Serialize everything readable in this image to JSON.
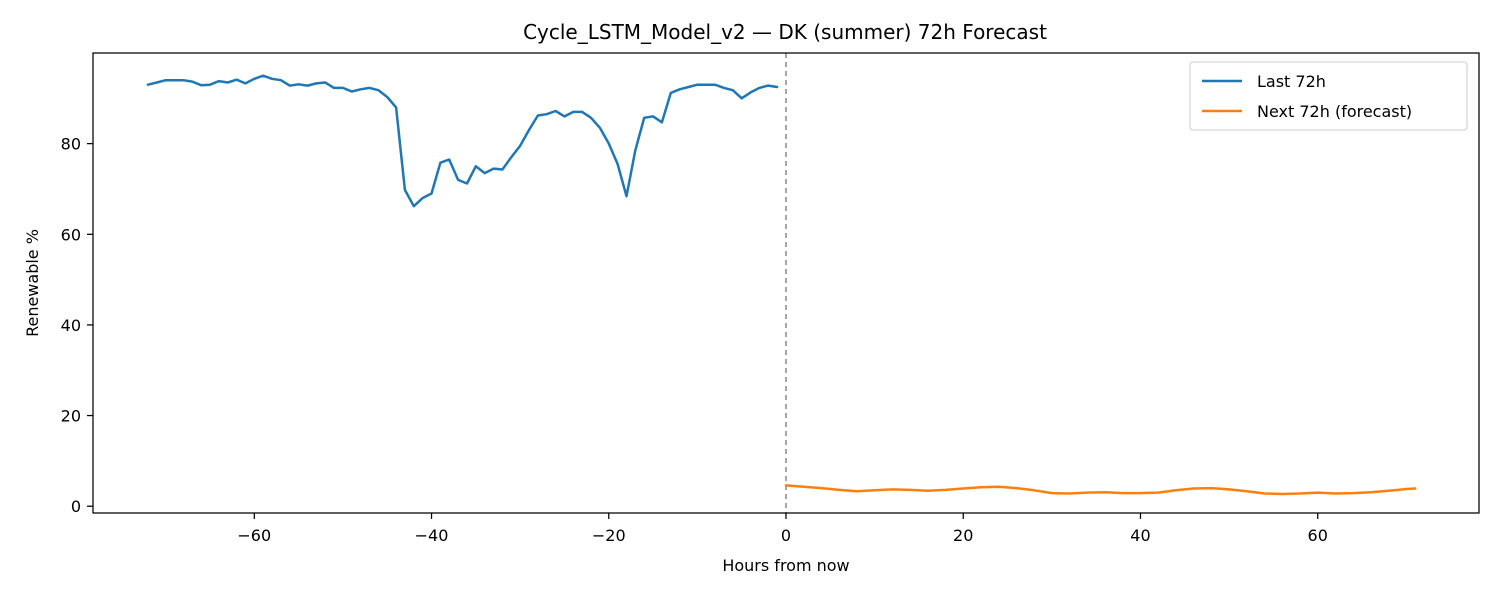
{
  "chart_data": {
    "type": "line",
    "title": "Cycle_LSTM_Model_v2 — DK (summer) 72h Forecast",
    "xlabel": "Hours from now",
    "ylabel": "Renewable %",
    "xlim": [
      -78.2,
      78.2
    ],
    "ylim": [
      -1.5,
      100
    ],
    "xticks": [
      -60,
      -40,
      -20,
      0,
      20,
      40,
      60
    ],
    "yticks": [
      0,
      20,
      40,
      60,
      80
    ],
    "xtick_labels": [
      "−60",
      "−40",
      "−20",
      "0",
      "20",
      "40",
      "60"
    ],
    "ytick_labels": [
      "0",
      "20",
      "40",
      "60",
      "80"
    ],
    "grid": false,
    "legend_position": "top-right",
    "vline": {
      "x": 0,
      "style": "dashed",
      "color": "#888888"
    },
    "series": [
      {
        "name": "Last 72h",
        "color": "#1f77b4",
        "x": [
          -72,
          -71,
          -70,
          -69,
          -68,
          -67,
          -66,
          -65,
          -64,
          -63,
          -62,
          -61,
          -60,
          -59,
          -58,
          -57,
          -56,
          -55,
          -54,
          -53,
          -52,
          -51,
          -50,
          -49,
          -48,
          -47,
          -46,
          -45,
          -44,
          -43,
          -42,
          -41,
          -40,
          -39,
          -38,
          -37,
          -36,
          -35,
          -34,
          -33,
          -32,
          -31,
          -30,
          -29,
          -28,
          -27,
          -26,
          -25,
          -24,
          -23,
          -22,
          -21,
          -20,
          -19,
          -18,
          -17,
          -16,
          -15,
          -14,
          -13,
          -12,
          -11,
          -10,
          -9,
          -8,
          -7,
          -6,
          -5,
          -4,
          -3,
          -2,
          -1
        ],
        "values": [
          93.0,
          93.5,
          94.0,
          94.0,
          94.0,
          93.7,
          92.9,
          93.0,
          93.8,
          93.5,
          94.1,
          93.3,
          94.3,
          95.0,
          94.3,
          94.0,
          92.8,
          93.1,
          92.8,
          93.3,
          93.5,
          92.3,
          92.3,
          91.5,
          92.0,
          92.3,
          91.8,
          90.3,
          88.0,
          69.8,
          66.2,
          68.0,
          69.0,
          75.8,
          76.5,
          72.0,
          71.2,
          75.0,
          73.5,
          74.5,
          74.3,
          77.0,
          79.5,
          83.0,
          86.2,
          86.5,
          87.2,
          86.0,
          87.0,
          87.0,
          85.7,
          83.5,
          80.0,
          75.5,
          68.4,
          78.5,
          85.7,
          86.0,
          84.7,
          91.2,
          92.0,
          92.5,
          93.0,
          93.0,
          93.0,
          92.3,
          91.8,
          90.0,
          91.3,
          92.3,
          92.8,
          92.5
        ]
      },
      {
        "name": "Next 72h (forecast)",
        "color": "#ff7f0e",
        "x": [
          0,
          2,
          4,
          6,
          8,
          10,
          12,
          14,
          16,
          18,
          20,
          22,
          24,
          26,
          28,
          30,
          32,
          34,
          36,
          38,
          40,
          42,
          44,
          46,
          48,
          50,
          52,
          54,
          56,
          58,
          60,
          62,
          64,
          66,
          68,
          70,
          71
        ],
        "values": [
          4.6,
          4.3,
          4.0,
          3.6,
          3.3,
          3.5,
          3.7,
          3.6,
          3.4,
          3.6,
          3.9,
          4.2,
          4.3,
          4.0,
          3.5,
          2.9,
          2.8,
          3.0,
          3.1,
          2.9,
          2.9,
          3.0,
          3.5,
          3.9,
          4.0,
          3.7,
          3.3,
          2.8,
          2.7,
          2.8,
          3.0,
          2.8,
          2.9,
          3.1,
          3.4,
          3.8,
          3.9
        ]
      }
    ]
  }
}
